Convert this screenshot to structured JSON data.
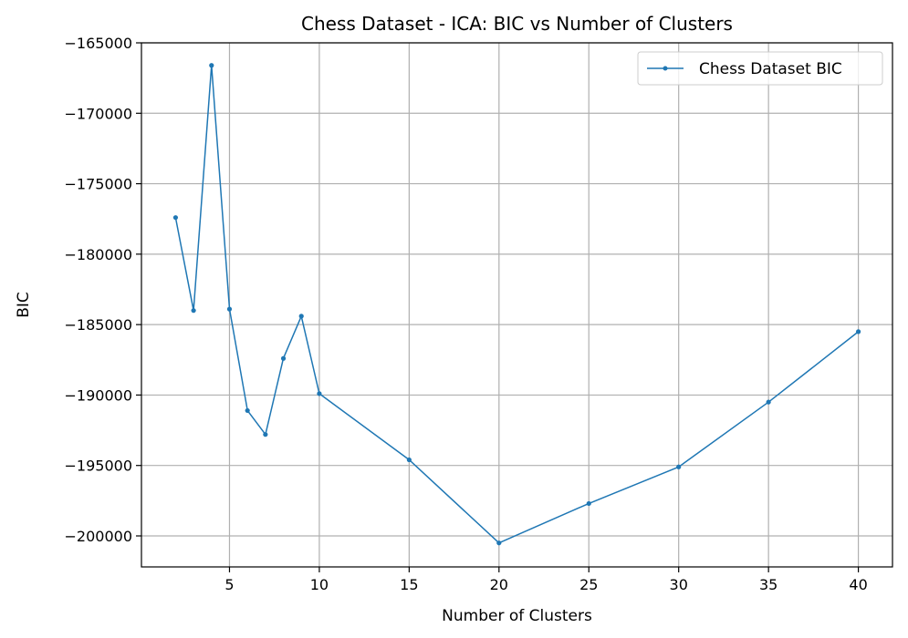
{
  "chart_data": {
    "type": "line",
    "title": "Chess Dataset - ICA: BIC vs Number of Clusters",
    "xlabel": "Number of Clusters",
    "ylabel": "BIC",
    "xlim": [
      0.1,
      41.9
    ],
    "ylim": [
      -202200,
      -165000
    ],
    "x_ticks": [
      5,
      10,
      15,
      20,
      25,
      30,
      35,
      40
    ],
    "y_ticks": [
      -165000,
      -170000,
      -175000,
      -180000,
      -185000,
      -190000,
      -195000,
      -200000
    ],
    "x_tick_labels": [
      "5",
      "10",
      "15",
      "20",
      "25",
      "30",
      "35",
      "40"
    ],
    "y_tick_labels": [
      "−165000",
      "−170000",
      "−175000",
      "−180000",
      "−185000",
      "−190000",
      "−195000",
      "−200000"
    ],
    "grid": true,
    "legend_position": "top-right",
    "series": [
      {
        "name": "Chess Dataset BIC",
        "color": "#1f77b4",
        "marker": "circle",
        "x": [
          2,
          3,
          4,
          5,
          6,
          7,
          8,
          9,
          10,
          15,
          20,
          25,
          30,
          35,
          40
        ],
        "y": [
          -177400,
          -184000,
          -166600,
          -183900,
          -191100,
          -192800,
          -187400,
          -184400,
          -189900,
          -194600,
          -200500,
          -197700,
          -195100,
          -190500,
          -185500
        ]
      }
    ]
  }
}
